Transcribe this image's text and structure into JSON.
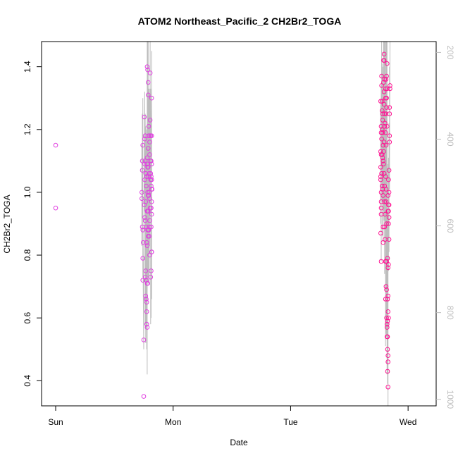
{
  "chart_data": {
    "type": "scatter",
    "title": "ATOM2 Northeast_Pacific_2 CH2Br2_TOGA",
    "xlabel": "Date",
    "ylabel": "CH2Br2_TOGA",
    "x_axis": {
      "kind": "date",
      "range": [
        "Sun 00:00",
        "Wed 03:00"
      ],
      "ticks": [
        "Sun",
        "Mon",
        "Tue",
        "Wed"
      ]
    },
    "ylim": [
      0.32,
      1.48
    ],
    "y_ticks": [
      "0.4",
      "0.6",
      "0.8",
      "1.0",
      "1.2",
      "1.4"
    ],
    "right_axis": {
      "reversed": true,
      "range": [
        175,
        1015
      ],
      "ticks": [
        "200",
        "400",
        "600",
        "800",
        "1000"
      ],
      "color": "#bdbdbd"
    },
    "grid": false,
    "legend": "none",
    "colors": {
      "points": "#e040e0",
      "points_secondary": "#ff1493",
      "line": "#bdbdbd"
    },
    "series": [
      {
        "values": [
          [
            "Sun 00:00",
            1.15
          ],
          [
            "Sun 00:00",
            0.95
          ],
          [
            "Sun 18:00",
            0.35
          ],
          [
            "Sun 18:00",
            0.53
          ],
          [
            "Sun 17:48",
            0.79
          ],
          [
            "Sun 17:54",
            0.84
          ],
          [
            "Sun 17:42",
            0.89
          ],
          [
            "Sun 17:48",
            0.88
          ],
          [
            "Sun 17:36",
            0.98
          ],
          [
            "Sun 17:36",
            1.0
          ],
          [
            "Sun 17:42",
            1.07
          ],
          [
            "Sun 17:42",
            1.1
          ],
          [
            "Sun 17:48",
            1.15
          ],
          [
            "Sun 18:06",
            1.24
          ],
          [
            "Sun 18:12",
            1.17
          ],
          [
            "Sun 18:18",
            1.18
          ],
          [
            "Sun 18:12",
            1.09
          ],
          [
            "Sun 18:18",
            1.1
          ],
          [
            "Sun 18:12",
            1.04
          ],
          [
            "Sun 18:06",
            0.96
          ],
          [
            "Sun 18:12",
            0.92
          ],
          [
            "Sun 18:18",
            0.91
          ],
          [
            "Sun 18:24",
            0.97
          ],
          [
            "Sun 18:30",
            0.89
          ],
          [
            "Sun 18:24",
            0.75
          ],
          [
            "Sun 18:30",
            0.72
          ],
          [
            "Sun 18:18",
            0.73
          ],
          [
            "Sun 18:24",
            0.67
          ],
          [
            "Sun 18:30",
            0.66
          ],
          [
            "Sun 18:36",
            0.65
          ],
          [
            "Sun 18:36",
            0.62
          ],
          [
            "Sun 18:36",
            0.58
          ],
          [
            "Sun 18:42",
            0.57
          ],
          [
            "Sun 18:42",
            0.71
          ],
          [
            "Sun 18:48",
            0.71
          ],
          [
            "Sun 17:48",
            0.72
          ],
          [
            "Sun 18:24",
            1.06
          ],
          [
            "Sun 18:30",
            1.02
          ],
          [
            "Sun 18:42",
            1.4
          ],
          [
            "Sun 18:48",
            1.39
          ],
          [
            "Sun 18:54",
            1.35
          ],
          [
            "Sun 18:54",
            1.31
          ],
          [
            "Sun 18:42",
            1.09
          ],
          [
            "Sun 18:48",
            1.08
          ],
          [
            "Sun 18:36",
            1.05
          ],
          [
            "Sun 18:42",
            1.11
          ],
          [
            "Sun 18:54",
            1.14
          ],
          [
            "Sun 19:00",
            1.18
          ],
          [
            "Sun 19:00",
            1.21
          ],
          [
            "Sun 19:06",
            1.18
          ],
          [
            "Sun 18:48",
            1.0
          ],
          [
            "Sun 18:54",
            0.99
          ],
          [
            "Sun 18:42",
            0.94
          ],
          [
            "Sun 18:48",
            0.94
          ],
          [
            "Sun 18:54",
            0.94
          ],
          [
            "Sun 18:36",
            0.84
          ],
          [
            "Sun 18:42",
            0.83
          ],
          [
            "Sun 18:48",
            0.88
          ],
          [
            "Sun 18:54",
            0.86
          ],
          [
            "Sun 19:00",
            0.88
          ],
          [
            "Sun 19:00",
            0.99
          ],
          [
            "Sun 19:06",
            1.0
          ],
          [
            "Sun 19:06",
            1.06
          ],
          [
            "Sun 19:12",
            1.12
          ],
          [
            "Sun 19:12",
            1.16
          ],
          [
            "Sun 19:18",
            1.23
          ],
          [
            "Sun 19:18",
            1.38
          ],
          [
            "Sun 19:24",
            1.1
          ],
          [
            "Sun 19:24",
            1.06
          ],
          [
            "Sun 19:24",
            1.04
          ],
          [
            "Sun 19:30",
            1.02
          ],
          [
            "Sun 19:12",
            0.98
          ],
          [
            "Sun 19:18",
            0.95
          ],
          [
            "Sun 19:12",
            0.91
          ],
          [
            "Sun 19:06",
            0.89
          ],
          [
            "Sun 19:00",
            0.88
          ],
          [
            "Sun 19:06",
            0.86
          ],
          [
            "Sun 19:12",
            0.8
          ],
          [
            "Sun 19:24",
            0.73
          ],
          [
            "Sun 19:30",
            0.75
          ],
          [
            "Sun 19:36",
            0.81
          ],
          [
            "Sun 19:36",
            0.81
          ],
          [
            "Sun 19:30",
            0.89
          ],
          [
            "Sun 19:36",
            0.93
          ],
          [
            "Sun 19:30",
            0.95
          ],
          [
            "Sun 19:36",
            0.97
          ],
          [
            "Sun 19:24",
            1.18
          ],
          [
            "Sun 19:36",
            1.18
          ],
          [
            "Sun 19:36",
            1.3
          ],
          [
            "Sun 19:30",
            1.1
          ],
          [
            "Sun 19:36",
            1.09
          ],
          [
            "Sun 19:30",
            1.05
          ],
          [
            "Sun 19:36",
            1.04
          ],
          [
            "Sun 19:36",
            1.01
          ],
          [
            "Sun 19:42",
            1.01
          ],
          [
            "Sun 18:54",
            1.08
          ],
          [
            "Sun 18:36",
            1.05
          ],
          [
            "Sun 19:00",
            1.05
          ],
          [
            "Tue 18:24",
            1.29
          ],
          [
            "Tue 18:30",
            1.21
          ],
          [
            "Tue 18:30",
            1.19
          ],
          [
            "Tue 18:36",
            1.17
          ],
          [
            "Tue 18:24",
            1.13
          ],
          [
            "Tue 18:30",
            1.12
          ],
          [
            "Tue 18:24",
            1.08
          ],
          [
            "Tue 18:24",
            1.05
          ],
          [
            "Tue 18:24",
            1.04
          ],
          [
            "Tue 18:30",
            1.0
          ],
          [
            "Tue 18:30",
            0.97
          ],
          [
            "Tue 18:30",
            0.95
          ],
          [
            "Tue 18:30",
            0.93
          ],
          [
            "Tue 18:24",
            0.87
          ],
          [
            "Tue 18:30",
            0.78
          ],
          [
            "Tue 18:36",
            1.37
          ],
          [
            "Tue 18:36",
            1.34
          ],
          [
            "Tue 18:42",
            1.29
          ],
          [
            "Tue 18:42",
            1.26
          ],
          [
            "Tue 18:48",
            1.25
          ],
          [
            "Tue 18:48",
            1.23
          ],
          [
            "Tue 18:42",
            1.2
          ],
          [
            "Tue 18:48",
            1.19
          ],
          [
            "Tue 18:54",
            1.15
          ],
          [
            "Tue 18:42",
            1.12
          ],
          [
            "Tue 18:48",
            1.11
          ],
          [
            "Tue 18:54",
            1.1
          ],
          [
            "Tue 18:36",
            1.06
          ],
          [
            "Tue 18:42",
            1.02
          ],
          [
            "Tue 18:48",
            1.01
          ],
          [
            "Tue 18:54",
            0.99
          ],
          [
            "Tue 18:54",
            0.84
          ],
          [
            "Tue 18:54",
            0.89
          ],
          [
            "Tue 19:00",
            1.42
          ],
          [
            "Tue 19:06",
            1.44
          ],
          [
            "Tue 19:06",
            1.42
          ],
          [
            "Tue 19:00",
            1.35
          ],
          [
            "Tue 19:06",
            1.32
          ],
          [
            "Tue 19:12",
            1.36
          ],
          [
            "Tue 19:06",
            1.28
          ],
          [
            "Tue 19:12",
            1.25
          ],
          [
            "Tue 19:12",
            1.21
          ],
          [
            "Tue 19:06",
            1.16
          ],
          [
            "Tue 19:00",
            1.13
          ],
          [
            "Tue 19:06",
            1.06
          ],
          [
            "Tue 19:12",
            1.02
          ],
          [
            "Tue 19:12",
            0.97
          ],
          [
            "Tue 19:18",
            0.93
          ],
          [
            "Tue 19:12",
            0.89
          ],
          [
            "Tue 19:18",
            0.85
          ],
          [
            "Tue 19:00",
            1.09
          ],
          [
            "Tue 19:18",
            1.22
          ],
          [
            "Tue 19:24",
            1.3
          ],
          [
            "Tue 19:24",
            1.33
          ],
          [
            "Tue 19:30",
            1.36
          ],
          [
            "Tue 19:30",
            1.25
          ],
          [
            "Tue 19:24",
            1.19
          ],
          [
            "Tue 19:30",
            1.15
          ],
          [
            "Tue 19:36",
            1.37
          ],
          [
            "Tue 19:42",
            1.41
          ],
          [
            "Tue 19:42",
            1.33
          ],
          [
            "Tue 19:36",
            1.3
          ],
          [
            "Tue 19:36",
            1.27
          ],
          [
            "Tue 19:42",
            1.21
          ],
          [
            "Tue 19:24",
            1.05
          ],
          [
            "Tue 19:30",
            1.01
          ],
          [
            "Tue 19:30",
            0.97
          ],
          [
            "Tue 19:36",
            0.9
          ],
          [
            "Tue 19:36",
            0.78
          ],
          [
            "Tue 19:24",
            0.78
          ],
          [
            "Tue 19:30",
            0.7
          ],
          [
            "Tue 19:36",
            0.69
          ],
          [
            "Tue 19:24",
            0.66
          ],
          [
            "Tue 19:36",
            0.6
          ],
          [
            "Tue 19:42",
            0.58
          ],
          [
            "Tue 19:42",
            0.57
          ],
          [
            "Tue 19:48",
            0.59
          ],
          [
            "Tue 19:42",
            0.54
          ],
          [
            "Tue 19:48",
            0.54
          ],
          [
            "Tue 19:48",
            0.5
          ],
          [
            "Tue 19:54",
            0.48
          ],
          [
            "Tue 19:54",
            0.46
          ],
          [
            "Tue 19:48",
            0.43
          ],
          [
            "Tue 19:54",
            0.38
          ],
          [
            "Tue 19:54",
            0.62
          ],
          [
            "Tue 20:00",
            0.6
          ],
          [
            "Tue 19:48",
            0.66
          ],
          [
            "Tue 19:54",
            0.67
          ],
          [
            "Tue 19:54",
            0.76
          ],
          [
            "Tue 20:00",
            0.77
          ],
          [
            "Tue 19:48",
            0.79
          ],
          [
            "Tue 20:06",
            0.85
          ],
          [
            "Tue 20:00",
            0.9
          ],
          [
            "Tue 20:06",
            0.92
          ],
          [
            "Tue 19:54",
            0.94
          ],
          [
            "Tue 20:00",
            0.94
          ],
          [
            "Tue 20:06",
            0.96
          ],
          [
            "Tue 20:00",
            0.96
          ],
          [
            "Tue 19:54",
            0.99
          ],
          [
            "Tue 20:06",
            1.0
          ],
          [
            "Tue 20:00",
            1.04
          ],
          [
            "Tue 20:06",
            1.07
          ],
          [
            "Tue 20:12",
            1.16
          ],
          [
            "Tue 20:12",
            1.18
          ],
          [
            "Tue 20:12",
            1.25
          ],
          [
            "Tue 20:12",
            1.27
          ],
          [
            "Tue 20:18",
            1.33
          ],
          [
            "Tue 20:18",
            1.34
          ]
        ]
      }
    ]
  }
}
